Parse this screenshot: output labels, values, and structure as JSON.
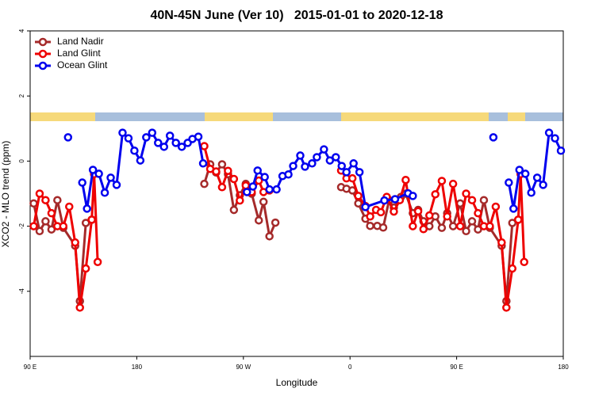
{
  "chart_data": {
    "type": "line",
    "title": "40N-45N June (Ver 10)   2015-01-01 to 2020-12-18",
    "x_label": "Longitude",
    "y_label": "XCO2 - MLO trend (ppm)",
    "xlim": [
      90,
      540
    ],
    "xticks": [
      {
        "value": 90,
        "label": "90 E"
      },
      180,
      {
        "value": 270,
        "label": "90 W"
      },
      {
        "value": 360,
        "label": "0"
      },
      {
        "value": 450,
        "label": "90 E"
      },
      {
        "value": 540,
        "label": "180"
      }
    ],
    "ylim": [
      -6,
      4
    ],
    "yticks": [
      -4,
      -2,
      0,
      2,
      4
    ],
    "grid": false,
    "legend": "top-left",
    "series": [
      {
        "name": "Land Nadir",
        "color": "#a52a2a",
        "x": [
          93,
          98,
          103,
          108,
          113,
          118,
          128,
          132,
          137,
          142,
          190,
          237,
          242,
          247,
          252,
          257,
          262,
          267,
          272,
          277,
          283,
          287,
          292,
          297,
          325,
          352.5,
          357,
          362,
          367,
          373,
          377,
          383,
          388,
          393,
          397,
          403,
          407,
          413,
          417.5,
          422,
          427,
          432,
          437.5,
          442,
          447,
          453,
          458,
          463,
          468,
          473,
          478,
          488,
          492,
          497,
          502
        ],
        "values": [
          -1.3,
          -2.15,
          -1.85,
          -2.1,
          -1.2,
          -2.05,
          -2.6,
          -4.3,
          -1.9,
          -1.8,
          null,
          -0.7,
          -0.1,
          -0.35,
          -0.1,
          -0.4,
          -1.5,
          -1.05,
          -0.7,
          -1.0,
          -1.82,
          -1.25,
          -2.31,
          -1.89,
          null,
          -0.8,
          -0.85,
          -0.9,
          -1.3,
          -1.77,
          -1.99,
          -1.99,
          -2.04,
          -1.2,
          -1.43,
          -1.1,
          -1.0,
          -1.6,
          -1.5,
          -1.85,
          -2.0,
          -1.7,
          -2.05,
          -1.6,
          -2.0,
          -1.3,
          -2.15,
          -1.85,
          -2.1,
          -1.2,
          -2.05,
          -2.6,
          -4.3,
          -1.9,
          -1.8
        ]
      },
      {
        "name": "Land Glint",
        "color": "#ee0000",
        "x": [
          93,
          98,
          103,
          108,
          113,
          118,
          123,
          128,
          132,
          137,
          142,
          144,
          147,
          190,
          237,
          242,
          247,
          252,
          257,
          262,
          267,
          272,
          277,
          283,
          287,
          292,
          325,
          352.5,
          357,
          362,
          367,
          373,
          377,
          382,
          386,
          391,
          397,
          402,
          407,
          413,
          417.5,
          422,
          427,
          432,
          437.5,
          442,
          447,
          453,
          458,
          463,
          468,
          473,
          478,
          483,
          488,
          492,
          497,
          502,
          504,
          507
        ],
        "values": [
          -2.0,
          -1.0,
          -1.2,
          -1.6,
          -2.0,
          -2.0,
          -1.4,
          -2.5,
          -4.5,
          -3.3,
          -1.8,
          -0.4,
          -3.1,
          null,
          0.46,
          -0.24,
          -0.32,
          -0.8,
          -0.3,
          -0.55,
          -1.21,
          -0.75,
          -0.95,
          -0.6,
          -0.95,
          -0.9,
          null,
          -0.29,
          -0.53,
          -0.53,
          -1.07,
          -1.38,
          -1.7,
          -1.5,
          -1.57,
          -1.1,
          -1.55,
          -1.2,
          -0.58,
          -2.0,
          -1.54,
          -2.09,
          -1.67,
          -1.02,
          -0.61,
          -1.7,
          -0.7,
          -2.0,
          -1.0,
          -1.2,
          -1.6,
          -2.0,
          -2.0,
          -1.4,
          -2.5,
          -4.5,
          -3.3,
          -1.8,
          -0.4,
          -3.1
        ]
      },
      {
        "name": "Ocean Glint",
        "color": "#0000ee",
        "x": [
          122,
          127,
          134,
          138,
          143,
          148,
          153,
          158,
          163,
          168,
          173,
          178,
          183,
          188,
          193,
          198,
          203,
          208,
          213,
          218,
          223,
          227,
          232,
          236,
          250,
          273,
          278,
          282,
          288,
          292,
          298,
          303,
          308,
          312,
          318,
          322,
          328,
          332,
          338,
          343,
          348,
          353,
          357,
          363,
          368,
          373,
          389,
          398,
          409,
          413,
          450,
          481,
          487,
          494,
          498,
          503,
          508,
          513,
          518,
          523,
          528,
          533,
          538
        ],
        "values": [
          0.73,
          null,
          -0.66,
          -1.46,
          -0.27,
          -0.39,
          -0.97,
          -0.51,
          -0.73,
          0.87,
          0.7,
          0.32,
          0.02,
          0.73,
          0.87,
          0.56,
          0.44,
          0.78,
          0.56,
          0.44,
          0.56,
          0.68,
          0.75,
          -0.07,
          null,
          -0.95,
          -0.78,
          -0.29,
          -0.49,
          -0.87,
          -0.87,
          -0.46,
          -0.41,
          -0.15,
          0.17,
          -0.17,
          -0.07,
          0.12,
          0.36,
          0.02,
          0.12,
          -0.15,
          -0.34,
          -0.07,
          -0.34,
          -1.41,
          -1.21,
          -1.17,
          -0.99,
          -1.07,
          null,
          0.73,
          null,
          -0.66,
          -1.46,
          -0.27,
          -0.39,
          -0.97,
          -0.51,
          -0.73,
          0.87,
          0.7,
          0.32
        ]
      }
    ]
  }
}
